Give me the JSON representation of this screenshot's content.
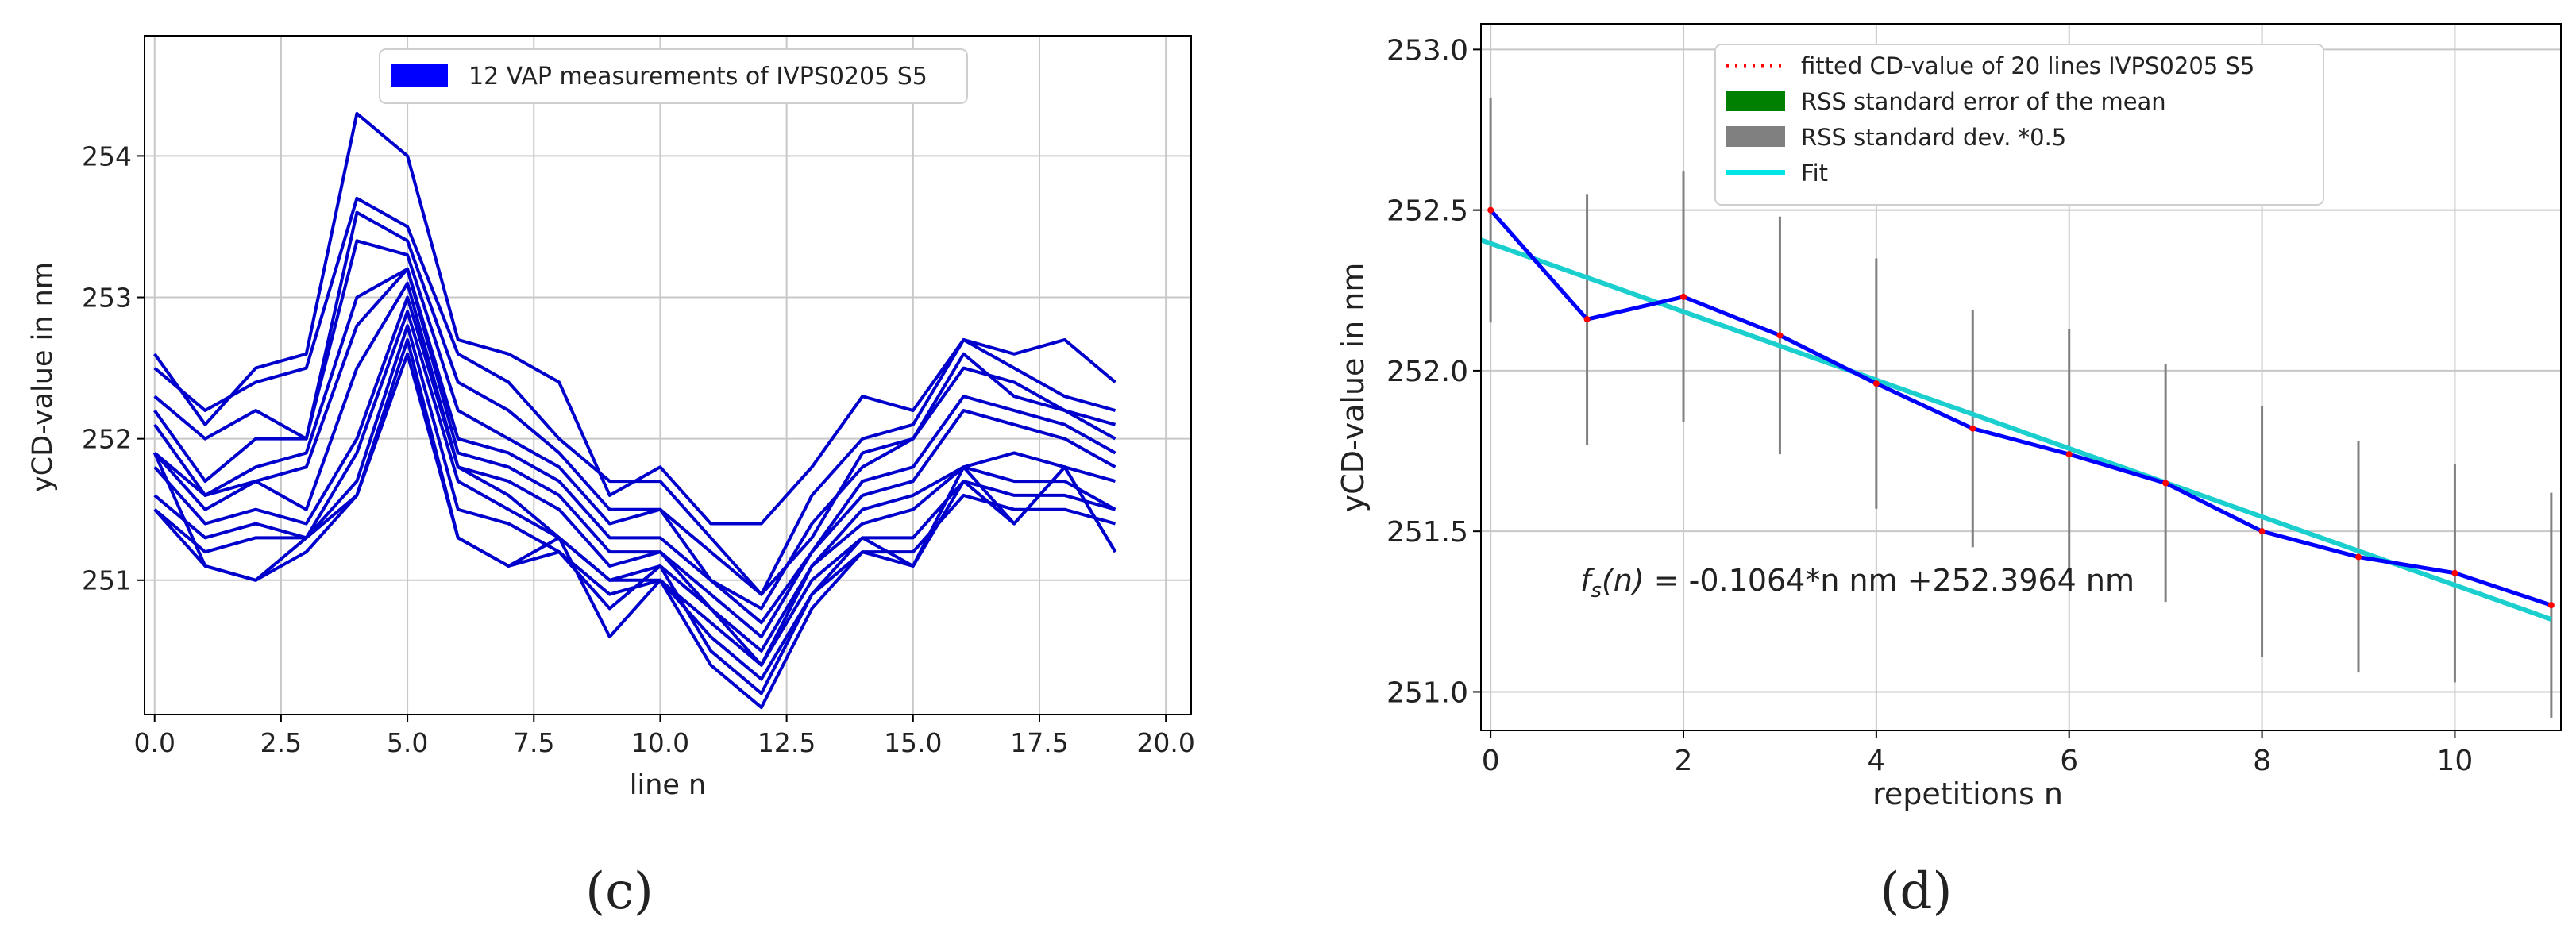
{
  "chart_data": [
    {
      "type": "line",
      "panel_label": "(c)",
      "xlabel": "line n",
      "ylabel": "yCD-value in nm",
      "xlim": [
        -0.2,
        20.5
      ],
      "ylim": [
        250.05,
        254.85
      ],
      "xticks": [
        0.0,
        2.5,
        5.0,
        7.5,
        10.0,
        12.5,
        15.0,
        17.5,
        20.0
      ],
      "xtick_labels": [
        "0.0",
        "2.5",
        "5.0",
        "7.5",
        "10.0",
        "12.5",
        "15.0",
        "17.5",
        "20.0"
      ],
      "yticks": [
        251,
        252,
        253,
        254
      ],
      "ytick_labels": [
        "251",
        "252",
        "253",
        "254"
      ],
      "grid": true,
      "legend": {
        "placement": "top-center",
        "entries": [
          {
            "label": "12 VAP measurements of IVPS0205 S5",
            "color": "#0000ff"
          }
        ]
      },
      "series_color": "#0000cc",
      "x": [
        0,
        1,
        2,
        3,
        4,
        5,
        6,
        7,
        8,
        9,
        10,
        11,
        12,
        13,
        14,
        15,
        16,
        17,
        18,
        19
      ],
      "series": [
        {
          "values": [
            252.6,
            252.1,
            252.5,
            252.6,
            254.3,
            254.0,
            252.7,
            252.6,
            252.4,
            251.6,
            251.8,
            251.4,
            251.4,
            251.8,
            252.3,
            252.2,
            252.7,
            252.6,
            252.7,
            252.4
          ]
        },
        {
          "values": [
            252.5,
            252.2,
            252.4,
            252.5,
            253.7,
            253.5,
            252.6,
            252.4,
            252.0,
            251.7,
            251.7,
            251.3,
            250.9,
            251.6,
            252.0,
            252.1,
            252.7,
            252.5,
            252.3,
            252.2
          ]
        },
        {
          "values": [
            252.3,
            252.0,
            252.2,
            252.0,
            253.6,
            253.4,
            252.4,
            252.2,
            251.9,
            251.5,
            251.5,
            251.2,
            250.9,
            251.3,
            251.9,
            252.0,
            252.6,
            252.3,
            252.2,
            252.1
          ]
        },
        {
          "values": [
            252.2,
            251.7,
            252.0,
            252.0,
            253.4,
            253.3,
            252.2,
            252.0,
            251.8,
            251.4,
            251.5,
            251.0,
            250.8,
            251.4,
            251.8,
            252.0,
            252.5,
            252.4,
            252.2,
            252.0
          ]
        },
        {
          "values": [
            252.1,
            251.6,
            251.8,
            251.9,
            253.0,
            253.2,
            252.0,
            251.9,
            251.7,
            251.3,
            251.3,
            251.0,
            250.7,
            251.2,
            251.7,
            251.8,
            252.3,
            252.2,
            252.1,
            251.9
          ]
        },
        {
          "values": [
            251.9,
            251.5,
            251.7,
            251.8,
            252.8,
            253.2,
            251.9,
            251.8,
            251.6,
            251.2,
            251.2,
            250.9,
            250.6,
            251.2,
            251.6,
            251.7,
            252.2,
            252.1,
            252.0,
            251.8
          ]
        },
        {
          "values": [
            251.9,
            251.6,
            251.7,
            251.5,
            252.5,
            253.1,
            251.8,
            251.7,
            251.5,
            251.1,
            251.2,
            250.8,
            250.5,
            251.1,
            251.5,
            251.6,
            251.8,
            251.9,
            251.8,
            251.7
          ]
        },
        {
          "values": [
            251.8,
            251.4,
            251.5,
            251.4,
            252.0,
            253.0,
            251.8,
            251.6,
            251.3,
            251.0,
            251.1,
            250.8,
            250.4,
            251.1,
            251.4,
            251.5,
            251.8,
            251.7,
            251.7,
            251.5
          ]
        },
        {
          "values": [
            251.6,
            251.3,
            251.4,
            251.3,
            251.9,
            252.9,
            251.7,
            251.5,
            251.3,
            251.0,
            251.0,
            250.7,
            250.4,
            251.0,
            251.3,
            251.3,
            251.7,
            251.6,
            251.6,
            251.5
          ]
        },
        {
          "values": [
            251.5,
            251.2,
            251.3,
            251.3,
            251.7,
            252.8,
            251.5,
            251.4,
            251.2,
            250.9,
            251.0,
            250.6,
            250.3,
            250.9,
            251.2,
            251.2,
            251.6,
            251.5,
            251.5,
            251.4
          ]
        },
        {
          "values": [
            251.9,
            251.1,
            251.0,
            251.2,
            251.6,
            252.7,
            251.3,
            251.1,
            251.2,
            250.8,
            251.1,
            250.5,
            250.2,
            250.9,
            251.3,
            251.1,
            251.7,
            251.4,
            251.8,
            251.2
          ]
        },
        {
          "values": [
            251.5,
            251.1,
            251.0,
            251.3,
            251.6,
            252.6,
            251.3,
            251.1,
            251.3,
            250.6,
            251.0,
            250.4,
            250.1,
            250.8,
            251.2,
            251.1,
            251.8,
            251.4,
            251.8,
            251.2
          ]
        }
      ]
    },
    {
      "type": "line",
      "panel_label": "(d)",
      "xlabel": "repetitions n",
      "ylabel": "yCD-value in nm",
      "xlim": [
        -0.1,
        11.1
      ],
      "ylim": [
        250.88,
        253.08
      ],
      "xticks": [
        0,
        2,
        4,
        6,
        8,
        10
      ],
      "xtick_labels": [
        "0",
        "2",
        "4",
        "6",
        "8",
        "10"
      ],
      "yticks": [
        251.0,
        251.5,
        252.0,
        252.5,
        253.0
      ],
      "ytick_labels": [
        "251.0",
        "251.5",
        "252.0",
        "252.5",
        "253.0"
      ],
      "grid": true,
      "legend": {
        "placement": "top-center",
        "entries": [
          {
            "label": "fitted CD-value of 20 lines IVPS0205 S5",
            "color": "#ff0000",
            "style": "dotted"
          },
          {
            "label": "RSS standard error of  the mean",
            "color": "#008000",
            "style": "patch"
          },
          {
            "label": "RSS standard dev. *0.5",
            "color": "#808080",
            "style": "patch"
          },
          {
            "label": "Fit",
            "color": "#00e5e5",
            "style": "line"
          }
        ]
      },
      "annotation": {
        "prefix": "f",
        "subscript": "s",
        "arg": "(n)",
        "text": " = -0.1064*n nm +252.3964 nm"
      },
      "fit": {
        "slope": -0.1064,
        "intercept": 252.3964,
        "color": "#1ccfcf"
      },
      "measured_color": "#0000ff",
      "point_color": "#ff0000",
      "errorbar_color": "#808080",
      "x": [
        0,
        1,
        2,
        3,
        4,
        5,
        6,
        7,
        8,
        9,
        10,
        11
      ],
      "values": [
        252.5,
        252.16,
        252.23,
        252.11,
        251.96,
        251.82,
        251.74,
        251.65,
        251.5,
        251.42,
        251.37,
        251.27
      ],
      "error_half_width": [
        0.35,
        0.39,
        0.39,
        0.37,
        0.39,
        0.37,
        0.39,
        0.37,
        0.39,
        0.36,
        0.34,
        0.35
      ]
    }
  ]
}
